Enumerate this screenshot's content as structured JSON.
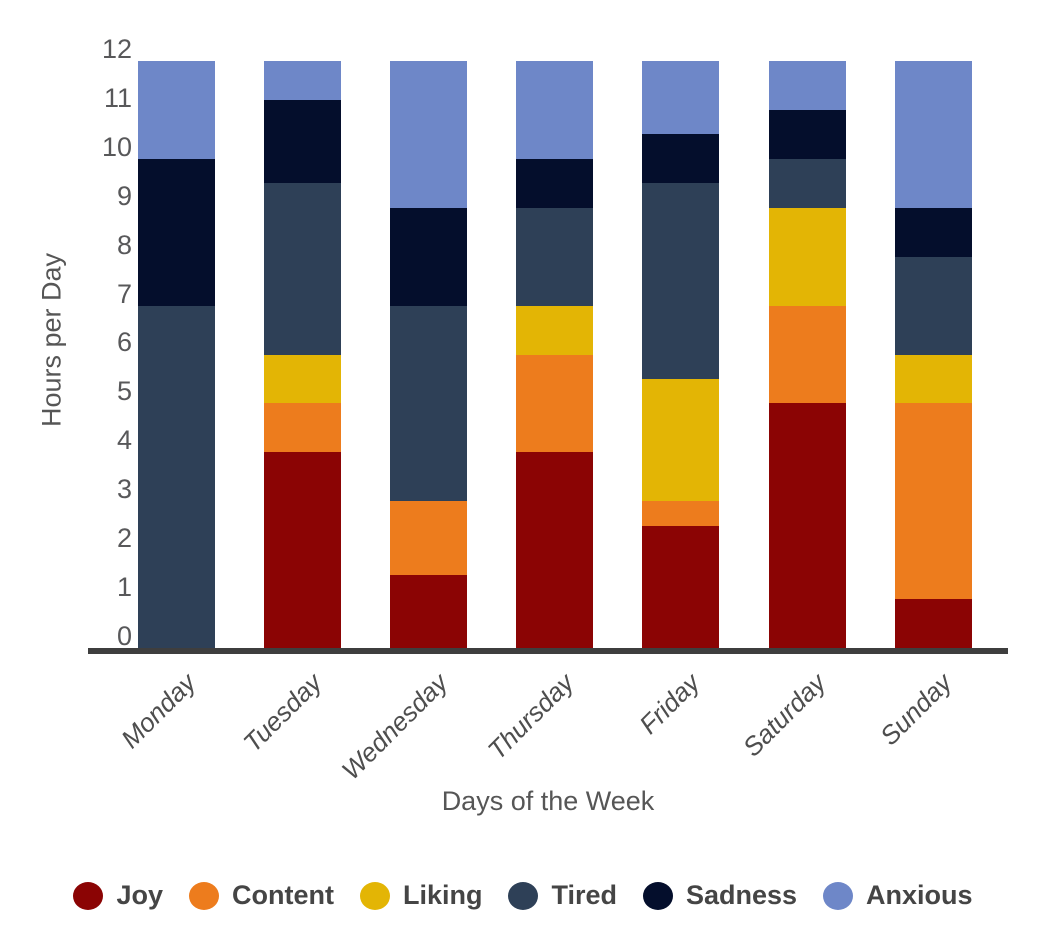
{
  "chart_data": {
    "type": "bar",
    "stacked": true,
    "title": "",
    "xlabel": "Days of the Week",
    "ylabel": "Hours per Day",
    "categories": [
      "Monday",
      "Tuesday",
      "Wednesday",
      "Thursday",
      "Friday",
      "Saturday",
      "Sunday"
    ],
    "series": [
      {
        "name": "Joy",
        "color": "#8b0404",
        "values": [
          0,
          4,
          1.5,
          4,
          2.5,
          5,
          1
        ]
      },
      {
        "name": "Content",
        "color": "#ed7c1d",
        "values": [
          0,
          1,
          1.5,
          2,
          0.5,
          2,
          4
        ]
      },
      {
        "name": "Liking",
        "color": "#e3b505",
        "values": [
          0,
          1,
          0,
          1,
          2.5,
          2,
          1
        ]
      },
      {
        "name": "Tired",
        "color": "#2e4057",
        "values": [
          7,
          3.5,
          4,
          2,
          4,
          1,
          2
        ]
      },
      {
        "name": "Sadness",
        "color": "#040e2c",
        "values": [
          3,
          1.7,
          2,
          1,
          1,
          1,
          1
        ]
      },
      {
        "name": "Anxious",
        "color": "#6e87c8",
        "values": [
          2,
          0.8,
          3,
          2,
          1.5,
          1,
          3
        ]
      }
    ],
    "ylim": [
      0,
      12
    ],
    "yticks": [
      0,
      1,
      2,
      3,
      4,
      5,
      6,
      7,
      8,
      9,
      10,
      11,
      12
    ],
    "grid": false,
    "legend_position": "bottom"
  }
}
